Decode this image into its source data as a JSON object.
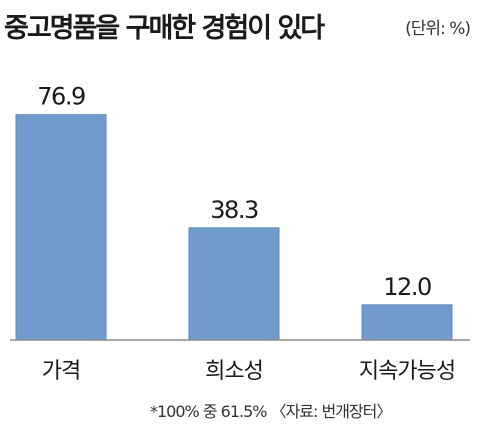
{
  "header": {
    "title": "중고명품을 구매한 경험이 있다",
    "unit": "(단위: %)"
  },
  "footer": {
    "footnote": "*100% 중 61.5%",
    "source": "〈자료: 번개장터〉"
  },
  "colors": {
    "bar": "#6f9acb",
    "bar_edge": "#5f89b9",
    "baseline": "#8a8a8a"
  },
  "chart_data": {
    "type": "bar",
    "title": "중고명품을 구매한 경험이 있다",
    "unit": "(단위: %)",
    "categories": [
      "가격",
      "희소성",
      "지속가능성"
    ],
    "values": [
      76.9,
      38.3,
      12.0
    ],
    "value_labels": [
      "76.9",
      "38.3",
      "12.0"
    ],
    "ylim": [
      0,
      100
    ],
    "grid": false,
    "legend": "none"
  }
}
